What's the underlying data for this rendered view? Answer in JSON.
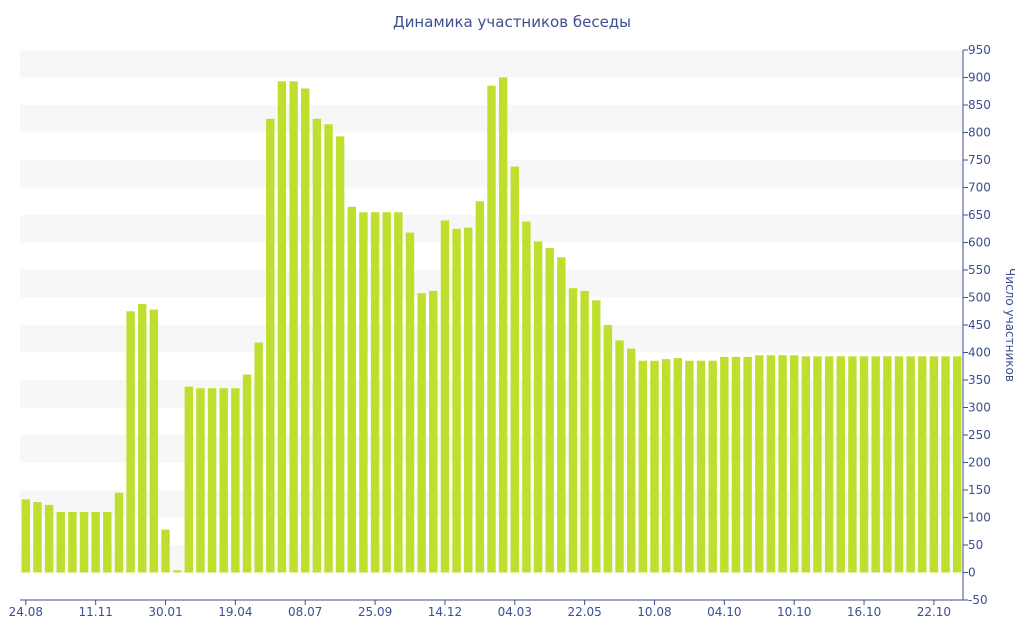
{
  "chart_data": {
    "type": "bar",
    "title": "Динамика участников беседы",
    "xlabel": "",
    "ylabel": "Число участников",
    "ylim": [
      -50,
      950
    ],
    "y_ticks": [
      -50,
      0,
      50,
      100,
      150,
      200,
      250,
      300,
      350,
      400,
      450,
      500,
      550,
      600,
      650,
      700,
      750,
      800,
      850,
      900,
      950
    ],
    "y_axis_side": "right",
    "grid": "alternating horizontal bands",
    "x_tick_labels": [
      "24.08",
      "11.11",
      "30.01",
      "19.04",
      "08.07",
      "25.09",
      "14.12",
      "04.03",
      "22.05",
      "10.08",
      "04.10",
      "10.10",
      "16.10",
      "22.10"
    ],
    "x_tick_positions": [
      0,
      6,
      12,
      18,
      24,
      30,
      36,
      42,
      48,
      54,
      60,
      66,
      72,
      78
    ],
    "values": [
      133,
      128,
      123,
      110,
      110,
      110,
      110,
      110,
      145,
      475,
      488,
      478,
      78,
      4,
      338,
      335,
      335,
      335,
      335,
      360,
      418,
      825,
      893,
      893,
      880,
      825,
      815,
      793,
      665,
      655,
      655,
      655,
      655,
      618,
      508,
      512,
      640,
      625,
      627,
      675,
      885,
      900,
      738,
      638,
      602,
      590,
      573,
      517,
      512,
      495,
      450,
      422,
      407,
      385,
      385,
      388,
      390,
      385,
      385,
      385,
      392,
      392,
      392,
      395,
      395,
      395,
      395,
      393,
      393,
      393,
      393,
      393,
      393,
      393,
      393,
      393,
      393,
      393,
      393,
      393,
      393
    ],
    "colors": {
      "bar": "#bedf2d",
      "band": "#f7f7f7",
      "axis": "#3d4f8f",
      "text": "#3d4f8f"
    }
  }
}
